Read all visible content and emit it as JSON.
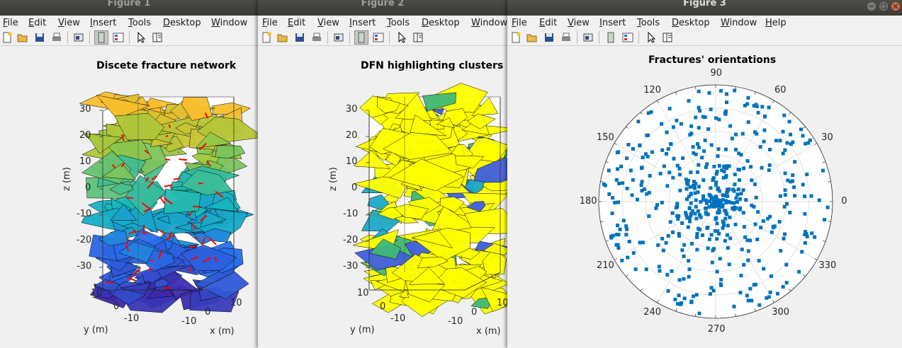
{
  "menu_common": [
    "File",
    "Edit",
    "View",
    "Insert",
    "Tools",
    "Desktop",
    "Window"
  ],
  "menu_help": "Help",
  "figures": [
    {
      "window_title": "Figure 1",
      "plot_title": "Discete fracture network",
      "z_ticks": [
        "30",
        "20",
        "10",
        "0",
        "-10",
        "-20",
        "-30"
      ],
      "y_ticks": [
        "10",
        "0",
        "-10"
      ],
      "x_ticks": [
        "-10",
        "0",
        "10"
      ],
      "xlabel": "x (m)",
      "ylabel": "y (m)",
      "zlabel": "z (m)"
    },
    {
      "window_title": "Figure 2",
      "plot_title": "DFN highlighting clusters",
      "z_ticks": [
        "30",
        "20",
        "10",
        "0",
        "-10",
        "-20",
        "-30"
      ],
      "y_ticks": [
        "10",
        "0",
        "-10"
      ],
      "x_ticks": [
        "-10",
        "0",
        "10"
      ],
      "xlabel": "x (m)",
      "ylabel": "y (m)",
      "zlabel": "z (m)"
    },
    {
      "window_title": "Figure 3",
      "plot_title": "Fractures' orientations",
      "angle_labels": [
        "0",
        "30",
        "60",
        "90",
        "120",
        "150",
        "180",
        "210",
        "240",
        "270",
        "300",
        "330"
      ]
    }
  ],
  "colors": {
    "titlebar": "#3c3b37",
    "polar_marker": "#0072bd",
    "cluster_yellow": "#ffff00",
    "fracture_trace": "#ff0000"
  },
  "chart_data": [
    {
      "type": "scatter",
      "title": "Fractures' orientations",
      "coordinate_system": "polar",
      "theta_ticks_deg": [
        0,
        30,
        60,
        90,
        120,
        150,
        180,
        210,
        240,
        270,
        300,
        330
      ],
      "radial_range": [
        0,
        1
      ],
      "radial_rings": 5,
      "grid": true,
      "marker": "square",
      "note_points": "≈500 orientation points densely clustered near center and scattered to rim"
    }
  ]
}
